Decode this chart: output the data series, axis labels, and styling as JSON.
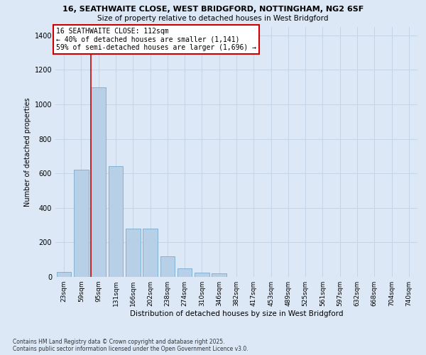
{
  "title_line1": "16, SEATHWAITE CLOSE, WEST BRIDGFORD, NOTTINGHAM, NG2 6SF",
  "title_line2": "Size of property relative to detached houses in West Bridgford",
  "xlabel": "Distribution of detached houses by size in West Bridgford",
  "ylabel": "Number of detached properties",
  "categories": [
    "23sqm",
    "59sqm",
    "95sqm",
    "131sqm",
    "166sqm",
    "202sqm",
    "238sqm",
    "274sqm",
    "310sqm",
    "346sqm",
    "382sqm",
    "417sqm",
    "453sqm",
    "489sqm",
    "525sqm",
    "561sqm",
    "597sqm",
    "632sqm",
    "668sqm",
    "704sqm",
    "740sqm"
  ],
  "values": [
    30,
    620,
    1100,
    640,
    280,
    280,
    120,
    50,
    25,
    20,
    0,
    0,
    0,
    0,
    0,
    0,
    0,
    0,
    0,
    0,
    0
  ],
  "bar_color": "#b8cfe8",
  "bar_edge_color": "#7aaad0",
  "grid_color": "#c5d5e8",
  "background_color": "#dce8f5",
  "vline_x_idx": 2,
  "vline_color": "#cc0000",
  "annotation_text": "16 SEATHWAITE CLOSE: 112sqm\n← 40% of detached houses are smaller (1,141)\n59% of semi-detached houses are larger (1,696) →",
  "annotation_box_edgecolor": "#cc0000",
  "annotation_box_facecolor": "#ffffff",
  "ylim": [
    0,
    1450
  ],
  "yticks": [
    0,
    200,
    400,
    600,
    800,
    1000,
    1200,
    1400
  ],
  "footer_line1": "Contains HM Land Registry data © Crown copyright and database right 2025.",
  "footer_line2": "Contains public sector information licensed under the Open Government Licence v3.0."
}
